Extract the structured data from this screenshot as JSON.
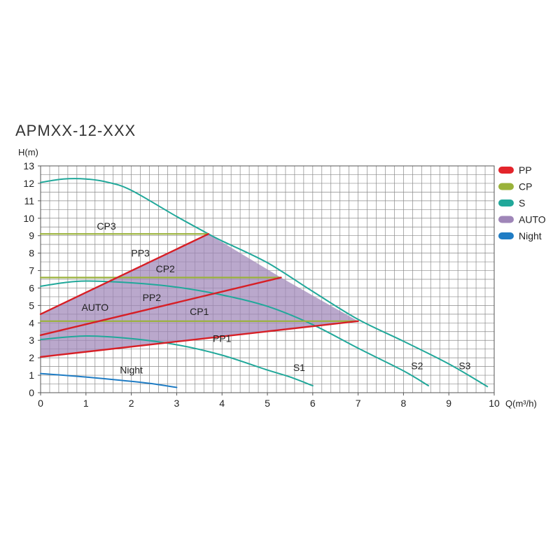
{
  "chart_data": {
    "type": "line",
    "title": "APMXX-12-XXX",
    "ylabel": "H(m)",
    "xlabel": "Q(m³/h)",
    "xlim": [
      0,
      10
    ],
    "ylim": [
      0,
      13
    ],
    "xticks": [
      0,
      1,
      2,
      3,
      4,
      5,
      6,
      7,
      8,
      9,
      10
    ],
    "yticks": [
      0,
      1,
      2,
      3,
      4,
      5,
      6,
      7,
      8,
      9,
      10,
      11,
      12,
      13
    ],
    "grid": true,
    "legend_position": "right",
    "legend": [
      {
        "label": "PP",
        "color": "#e3242b"
      },
      {
        "label": "CP",
        "color": "#9ab23a"
      },
      {
        "label": "S",
        "color": "#21a89a"
      },
      {
        "label": "AUTO",
        "color": "#9f86b8"
      },
      {
        "label": "Night",
        "color": "#1f7cc4"
      }
    ],
    "auto_region": {
      "label": "AUTO",
      "color": "#9f86b8",
      "label_at": [
        1.2,
        4.7
      ],
      "points": [
        [
          0,
          2.05
        ],
        [
          7.0,
          4.1
        ],
        [
          5.3,
          6.6
        ],
        [
          3.7,
          9.1
        ],
        [
          0,
          4.5
        ]
      ]
    },
    "series": [
      {
        "name": "S1",
        "group": "S",
        "color": "#21a89a",
        "label_at": [
          5.7,
          1.25
        ],
        "points": [
          [
            0,
            3.05
          ],
          [
            1,
            3.25
          ],
          [
            2,
            3.1
          ],
          [
            3,
            2.75
          ],
          [
            4,
            2.15
          ],
          [
            5,
            1.3
          ],
          [
            5.5,
            0.9
          ],
          [
            6.0,
            0.4
          ]
        ]
      },
      {
        "name": "S2",
        "group": "S",
        "color": "#21a89a",
        "label_at": [
          8.3,
          1.35
        ],
        "points": [
          [
            0,
            6.1
          ],
          [
            0.5,
            6.3
          ],
          [
            1,
            6.4
          ],
          [
            2,
            6.3
          ],
          [
            3,
            6.05
          ],
          [
            4,
            5.6
          ],
          [
            5,
            4.95
          ],
          [
            6,
            3.9
          ],
          [
            7,
            2.55
          ],
          [
            8,
            1.25
          ],
          [
            8.55,
            0.4
          ]
        ]
      },
      {
        "name": "S3",
        "group": "S",
        "color": "#21a89a",
        "label_at": [
          9.35,
          1.35
        ],
        "points": [
          [
            0,
            12.05
          ],
          [
            0.5,
            12.25
          ],
          [
            1,
            12.25
          ],
          [
            1.5,
            12.05
          ],
          [
            2,
            11.6
          ],
          [
            3,
            10.1
          ],
          [
            3.7,
            9.1
          ],
          [
            4,
            8.7
          ],
          [
            5,
            7.45
          ],
          [
            6,
            5.8
          ],
          [
            7,
            4.2
          ],
          [
            8,
            2.95
          ],
          [
            9,
            1.65
          ],
          [
            9.85,
            0.35
          ]
        ]
      },
      {
        "name": "Night",
        "group": "Night",
        "color": "#1f7cc4",
        "label_at": [
          2.0,
          1.1
        ],
        "points": [
          [
            0,
            1.1
          ],
          [
            1,
            0.9
          ],
          [
            2,
            0.65
          ],
          [
            2.5,
            0.5
          ],
          [
            3.0,
            0.3
          ]
        ]
      },
      {
        "name": "PP1",
        "group": "PP",
        "color": "#d71f26",
        "label_at": [
          4.0,
          2.9
        ],
        "points": [
          [
            0,
            2.05
          ],
          [
            7.0,
            4.1
          ]
        ]
      },
      {
        "name": "PP2",
        "group": "PP",
        "color": "#d71f26",
        "label_at": [
          2.45,
          5.25
        ],
        "points": [
          [
            0,
            3.3
          ],
          [
            5.3,
            6.6
          ]
        ]
      },
      {
        "name": "PP3",
        "group": "PP",
        "color": "#d71f26",
        "label_at": [
          2.2,
          7.8
        ],
        "points": [
          [
            0,
            4.5
          ],
          [
            3.7,
            9.1
          ]
        ]
      },
      {
        "name": "CP1",
        "group": "CP",
        "color": "#9ab23a",
        "label_at": [
          3.5,
          4.45
        ],
        "points": [
          [
            0,
            4.1
          ],
          [
            7.0,
            4.1
          ]
        ]
      },
      {
        "name": "CP2",
        "group": "CP",
        "color": "#9ab23a",
        "label_at": [
          2.75,
          6.9
        ],
        "points": [
          [
            0,
            6.6
          ],
          [
            5.3,
            6.6
          ]
        ]
      },
      {
        "name": "CP3",
        "group": "CP",
        "color": "#9ab23a",
        "label_at": [
          1.45,
          9.35
        ],
        "points": [
          [
            0,
            9.1
          ],
          [
            3.7,
            9.1
          ]
        ]
      }
    ]
  }
}
